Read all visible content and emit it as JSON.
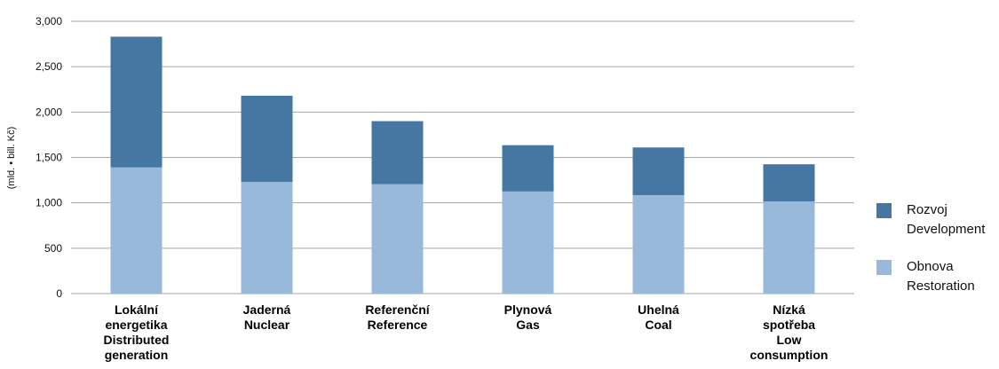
{
  "chart_data": {
    "type": "bar",
    "stacked": true,
    "ylabel": "(mld. • bill. Kč)",
    "ylim": [
      0,
      3000
    ],
    "yticks": [
      "0",
      "500",
      "1,000",
      "1,500",
      "2,000",
      "2,500",
      "3,000"
    ],
    "ytick_values": [
      0,
      500,
      1000,
      1500,
      2000,
      2500,
      3000
    ],
    "grid": true,
    "legend_position": "right",
    "categories": [
      [
        "Lokální",
        "energetika",
        "Distributed",
        "generation"
      ],
      [
        "Jaderná",
        "Nuclear"
      ],
      [
        "Referenční",
        "Reference"
      ],
      [
        "Plynová",
        "Gas"
      ],
      [
        "Uhelná",
        "Coal"
      ],
      [
        "Nízká",
        "spotřeba",
        "Low",
        "consumption"
      ]
    ],
    "series": [
      {
        "name": [
          "Obnova",
          "Restoration"
        ],
        "color": "#98b9d9",
        "values": [
          1390,
          1230,
          1205,
          1125,
          1085,
          1015
        ]
      },
      {
        "name": [
          "Rozvoj",
          "Development"
        ],
        "color": "#4677a3",
        "values": [
          1440,
          950,
          695,
          510,
          525,
          410
        ]
      }
    ]
  }
}
